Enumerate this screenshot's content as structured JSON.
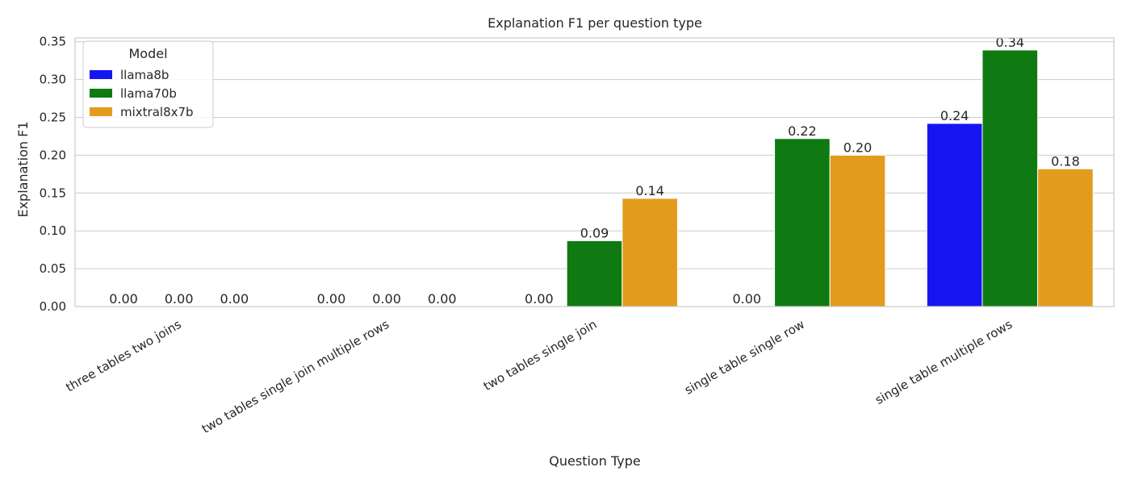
{
  "chart_data": {
    "type": "bar",
    "title": "Explanation F1 per question type",
    "xlabel": "Question Type",
    "ylabel": "Explanation F1",
    "categories": [
      "three tables two joins",
      "two tables single join multiple rows",
      "two tables single join",
      "single table single row",
      "single table multiple rows"
    ],
    "series": [
      {
        "name": "llama8b",
        "color": "#1515f2",
        "values": [
          0.0,
          0.0,
          0.0,
          0.0,
          0.242
        ],
        "labels": [
          "0.00",
          "0.00",
          "0.00",
          "0.00",
          "0.24"
        ]
      },
      {
        "name": "llama70b",
        "color": "#0f7a12",
        "values": [
          0.0,
          0.0,
          0.087,
          0.222,
          0.339
        ],
        "labels": [
          "0.00",
          "0.00",
          "0.09",
          "0.22",
          "0.34"
        ]
      },
      {
        "name": "mixtral8x7b",
        "color": "#e39b1e",
        "values": [
          0.0,
          0.0,
          0.143,
          0.2,
          0.182
        ],
        "labels": [
          "0.00",
          "0.00",
          "0.14",
          "0.20",
          "0.18"
        ]
      }
    ],
    "ylim": [
      0,
      0.355
    ],
    "yticks": [
      "0.00",
      "0.05",
      "0.10",
      "0.15",
      "0.20",
      "0.25",
      "0.30",
      "0.35"
    ],
    "grid": true,
    "legend": {
      "title": "Model",
      "placement": "top-left"
    }
  }
}
